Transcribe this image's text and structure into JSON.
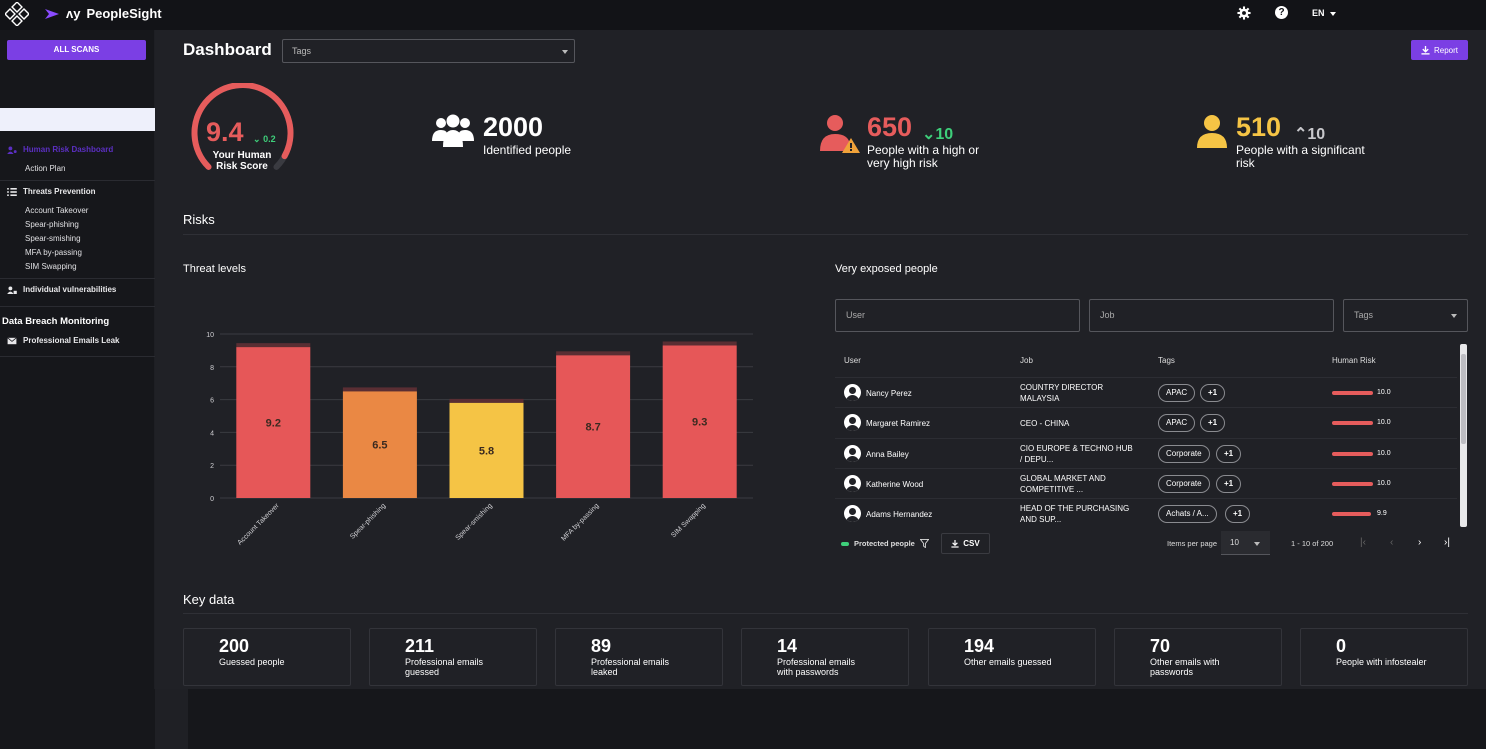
{
  "app": {
    "name": "PeopleSight",
    "brand_prefix": "ʌy",
    "language": "EN"
  },
  "sidebar": {
    "all_scans": "ALL SCANS",
    "human_risk_dashboard": "Human Risk Dashboard",
    "action_plan": "Action Plan",
    "threats_prevention": "Threats Prevention",
    "threats": [
      "Account Takeover",
      "Spear-phishing",
      "Spear-smishing",
      "MFA by-passing",
      "SIM Swapping"
    ],
    "individual_vulnerabilities": "Individual vulnerabilities",
    "data_breach_monitoring": "Data Breach Monitoring",
    "professional_emails_leak": "Professional Emails Leak"
  },
  "header": {
    "title": "Dashboard",
    "tags_placeholder": "Tags",
    "report": "Report"
  },
  "kpis": {
    "score": {
      "value": "9.4",
      "delta": "0.2",
      "label": "Your Human Risk Score",
      "fraction": 0.94
    },
    "identified": {
      "value": "2000",
      "label": "Identified people"
    },
    "high_risk": {
      "value": "650",
      "delta": "10",
      "label_line1": "People with a high or",
      "label_line2": "very high risk"
    },
    "significant": {
      "value": "510",
      "delta": "10",
      "label_line1": "People with a significant",
      "label_line2": "risk"
    }
  },
  "risks": {
    "title": "Risks",
    "threat_levels_title": "Threat levels",
    "very_exposed_title": "Very exposed people"
  },
  "chart_data": {
    "type": "bar",
    "categories": [
      "Account Takeover",
      "Spear-phishing",
      "Spear-smishing",
      "MFA by-passing",
      "SIM Swapping"
    ],
    "values": [
      9.2,
      6.5,
      5.8,
      8.7,
      9.3
    ],
    "value_labels": [
      "9.2",
      "6.5",
      "5.8",
      "8.7",
      "9.3"
    ],
    "colors": [
      "#e65758",
      "#ea8844",
      "#f5c445",
      "#e65758",
      "#e65758"
    ],
    "ylim": [
      0,
      10
    ],
    "yticks": [
      "0",
      "2",
      "4",
      "6",
      "8",
      "10"
    ],
    "grid": true,
    "title": "",
    "xlabel": "",
    "ylabel": ""
  },
  "exposed": {
    "filters": {
      "user": "User",
      "job": "Job",
      "tags": "Tags"
    },
    "columns": [
      "User",
      "Job",
      "Tags",
      "Human Risk"
    ],
    "rows": [
      {
        "name": "Nancy Perez",
        "job1": "COUNTRY DIRECTOR",
        "job2": "MALAYSIA",
        "tag": "APAC",
        "more": "+1",
        "risk": "10.0"
      },
      {
        "name": "Margaret Ramirez",
        "job1": "CEO - CHINA",
        "job2": "",
        "tag": "APAC",
        "more": "+1",
        "risk": "10.0"
      },
      {
        "name": "Anna Bailey",
        "job1": "CIO EUROPE & TECHNO HUB",
        "job2": "/ DEPU...",
        "tag": "Corporate",
        "more": "+1",
        "risk": "10.0"
      },
      {
        "name": "Katherine Wood",
        "job1": "GLOBAL MARKET AND",
        "job2": "COMPETITIVE ...",
        "tag": "Corporate",
        "more": "+1",
        "risk": "10.0"
      },
      {
        "name": "Adams Hernandez",
        "job1": "HEAD OF THE PURCHASING",
        "job2": "AND SUP...",
        "tag": "Achats / A...",
        "more": "+1",
        "risk": "9.9"
      }
    ],
    "protected_people": "Protected people",
    "csv": "CSV",
    "items_per_page_label": "Items per page",
    "items_per_page": "10",
    "range": "1 - 10 of 200"
  },
  "key_data": {
    "title": "Key data",
    "cards": [
      {
        "value": "200",
        "l1": "Guessed people",
        "l2": ""
      },
      {
        "value": "211",
        "l1": "Professional emails",
        "l2": "guessed"
      },
      {
        "value": "89",
        "l1": "Professional emails",
        "l2": "leaked"
      },
      {
        "value": "14",
        "l1": "Professional emails",
        "l2": "with passwords"
      },
      {
        "value": "194",
        "l1": "Other emails guessed",
        "l2": ""
      },
      {
        "value": "70",
        "l1": "Other emails with",
        "l2": "passwords"
      },
      {
        "value": "0",
        "l1": "People with infostealer",
        "l2": ""
      }
    ]
  },
  "icons": {
    "logo": "diamond-grid-logo",
    "settings": "gear-icon",
    "help": "help-icon",
    "identified": "people-group-icon",
    "high_risk": "person-warning-icon",
    "significant": "person-icon"
  },
  "colors": {
    "accent": "#7b3fe4",
    "danger": "#e65c5c",
    "warning": "#f5c445",
    "success": "#3ecf7a",
    "orange": "#ea8844"
  }
}
